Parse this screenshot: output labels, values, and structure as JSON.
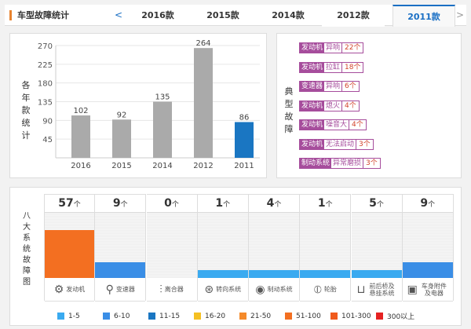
{
  "header": {
    "title": "车型故障统计",
    "prev": "<",
    "next": ">",
    "tabs": [
      {
        "label": "2016款"
      },
      {
        "label": "2015款"
      },
      {
        "label": "2014款"
      },
      {
        "label": "2012款"
      },
      {
        "label": "2011款",
        "active": true
      }
    ]
  },
  "chart_data": {
    "type": "bar",
    "ylabel": "各年款统计",
    "categories": [
      "2016",
      "2015",
      "2014",
      "2012",
      "2011"
    ],
    "values": [
      102,
      92,
      135,
      264,
      86
    ],
    "highlight": "2011",
    "yticks": [
      45,
      90,
      135,
      180,
      225,
      270
    ],
    "ylim": [
      0,
      270
    ],
    "colors": {
      "default": "#aaaaaa",
      "highlight": "#1a76c2"
    }
  },
  "typical": {
    "label": "典型故障",
    "items": [
      {
        "system": "发动机",
        "problem": "异响",
        "count": "22个"
      },
      {
        "system": "发动机",
        "problem": "拉缸",
        "count": "18个"
      },
      {
        "system": "变速器",
        "problem": "异响",
        "count": "6个"
      },
      {
        "system": "发动机",
        "problem": "熄火",
        "count": "4个"
      },
      {
        "system": "发动机",
        "problem": "噪音大",
        "count": "4个"
      },
      {
        "system": "发动机",
        "problem": "无法启动",
        "count": "3个"
      },
      {
        "system": "制动系统",
        "problem": "异常磨损",
        "count": "3个"
      }
    ]
  },
  "systems": {
    "label": "八大系统故障图",
    "unit": "个",
    "items": [
      {
        "name": "发动机",
        "count": 57,
        "icon": "engine-icon",
        "glyph": "⚙",
        "color": "#f36f21",
        "level": 0.73
      },
      {
        "name": "变速器",
        "count": 9,
        "icon": "gear-shift-icon",
        "glyph": "⚲",
        "color": "#3a8ee6",
        "level": 0.24
      },
      {
        "name": "离合器",
        "count": 0,
        "icon": "clutch-icon",
        "glyph": "⫶",
        "color": "#3aaaf0",
        "level": 0
      },
      {
        "name": "转向系统",
        "count": 1,
        "icon": "steering-wheel-icon",
        "glyph": "⊛",
        "color": "#3aaaf0",
        "level": 0.12
      },
      {
        "name": "制动系统",
        "count": 4,
        "icon": "brake-disc-icon",
        "glyph": "◉",
        "color": "#3aaaf0",
        "level": 0.12
      },
      {
        "name": "轮胎",
        "count": 1,
        "icon": "tire-icon",
        "glyph": "⦶",
        "color": "#3aaaf0",
        "level": 0.12
      },
      {
        "name": "前后桥及悬挂系统",
        "count": 5,
        "icon": "axle-icon",
        "glyph": "⊔",
        "color": "#3aaaf0",
        "level": 0.12
      },
      {
        "name": "车身附件及电器",
        "count": 9,
        "icon": "battery-icon",
        "glyph": "▣",
        "color": "#3a8ee6",
        "level": 0.24
      }
    ]
  },
  "legend": [
    {
      "label": "1-5",
      "color": "#3aaaf0"
    },
    {
      "label": "6-10",
      "color": "#3a8ee6"
    },
    {
      "label": "11-15",
      "color": "#1a76c2"
    },
    {
      "label": "16-20",
      "color": "#f5c023"
    },
    {
      "label": "21-50",
      "color": "#f58a2a"
    },
    {
      "label": "51-100",
      "color": "#f36f21"
    },
    {
      "label": "101-300",
      "color": "#f05a1c"
    },
    {
      "label": "300以上",
      "color": "#e52222"
    }
  ]
}
